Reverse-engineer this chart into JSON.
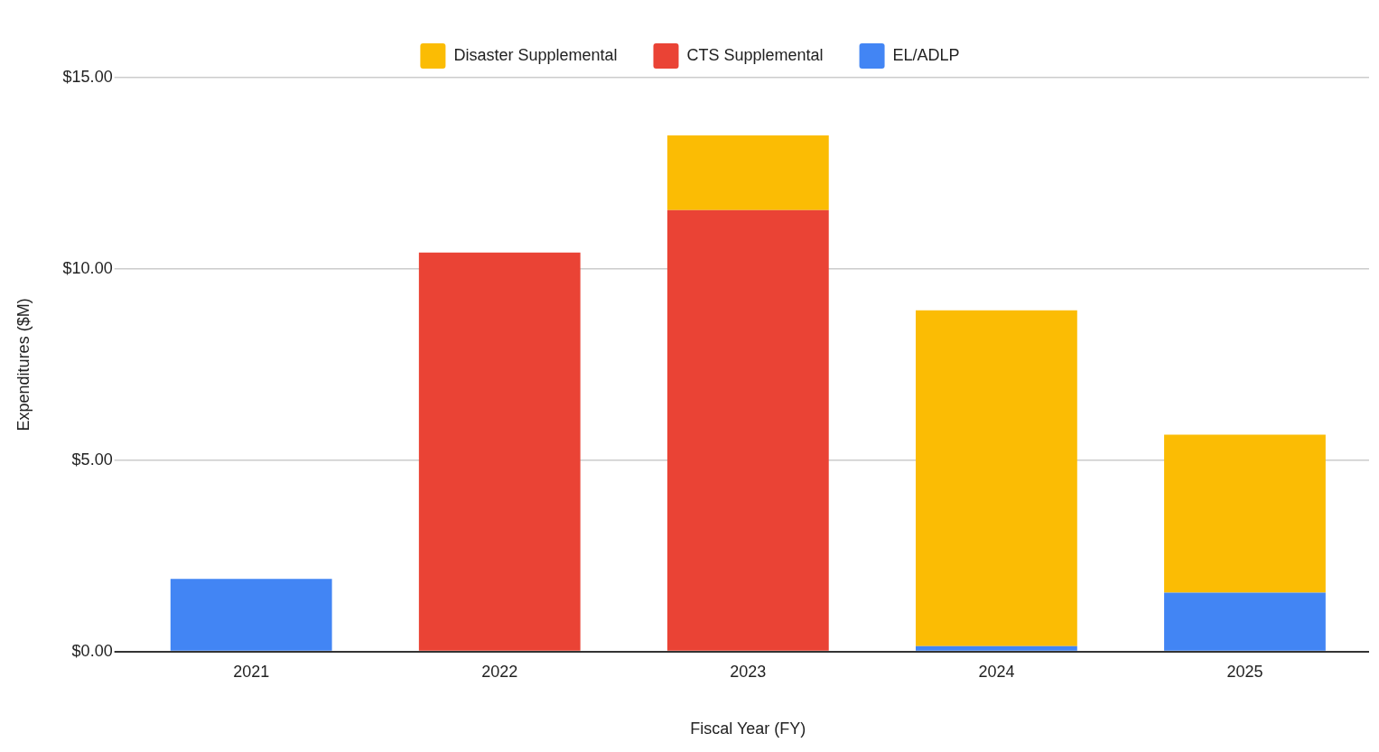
{
  "chart_data": {
    "type": "bar",
    "xlabel": "Fiscal Year (FY)",
    "ylabel": "Expenditures ($M)",
    "categories": [
      "2021",
      "2022",
      "2023",
      "2024",
      "2025"
    ],
    "stacked": true,
    "series": [
      {
        "name": "EL/ADLP",
        "color": "#4285f4",
        "values": [
          1.9,
          0,
          0,
          0.14,
          1.54
        ]
      },
      {
        "name": "CTS Supplemental",
        "color": "#ea4335",
        "values": [
          0,
          10.43,
          11.54,
          0,
          0
        ]
      },
      {
        "name": "Disaster Supplemental",
        "color": "#fbbc04",
        "values": [
          0,
          0,
          1.95,
          8.78,
          4.13
        ]
      }
    ],
    "ylim": [
      0,
      15
    ],
    "yticks": [
      {
        "value": 0,
        "label": "$0.00"
      },
      {
        "value": 5,
        "label": "$5.00"
      },
      {
        "value": 10,
        "label": "$10.00"
      },
      {
        "value": 15,
        "label": "$15.00"
      }
    ],
    "grid": "y",
    "legend": "top"
  }
}
